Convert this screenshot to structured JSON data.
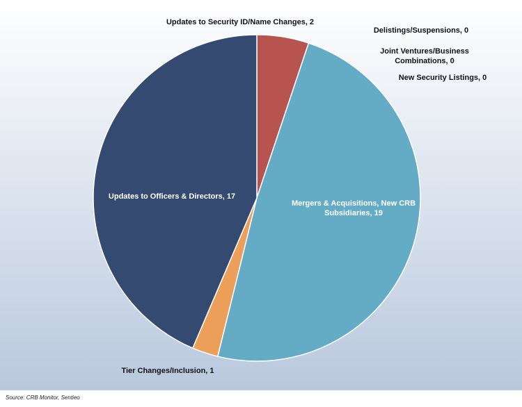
{
  "chart_data": {
    "type": "pie",
    "labels": [
      "Updates to Security ID/Name Changes, 2",
      "Delistings/Suspensions, 0",
      "Joint Ventures/Business Combinations, 0",
      "New Security Listings, 0",
      "Mergers & Acquisitions, New CRB Subsidiaries, 19",
      "Tier Changes/Inclusion, 1",
      "Updates to Officers & Directors, 17"
    ],
    "values": [
      2,
      0,
      0,
      0,
      19,
      1,
      17
    ],
    "colors": [
      "#b8544f",
      "#7f7f7f",
      "#9e9e9e",
      "#c0c0c0",
      "#64abc5",
      "#eb9f59",
      "#344a71"
    ],
    "source": "Source: CRB Monitor, Sentieo"
  }
}
